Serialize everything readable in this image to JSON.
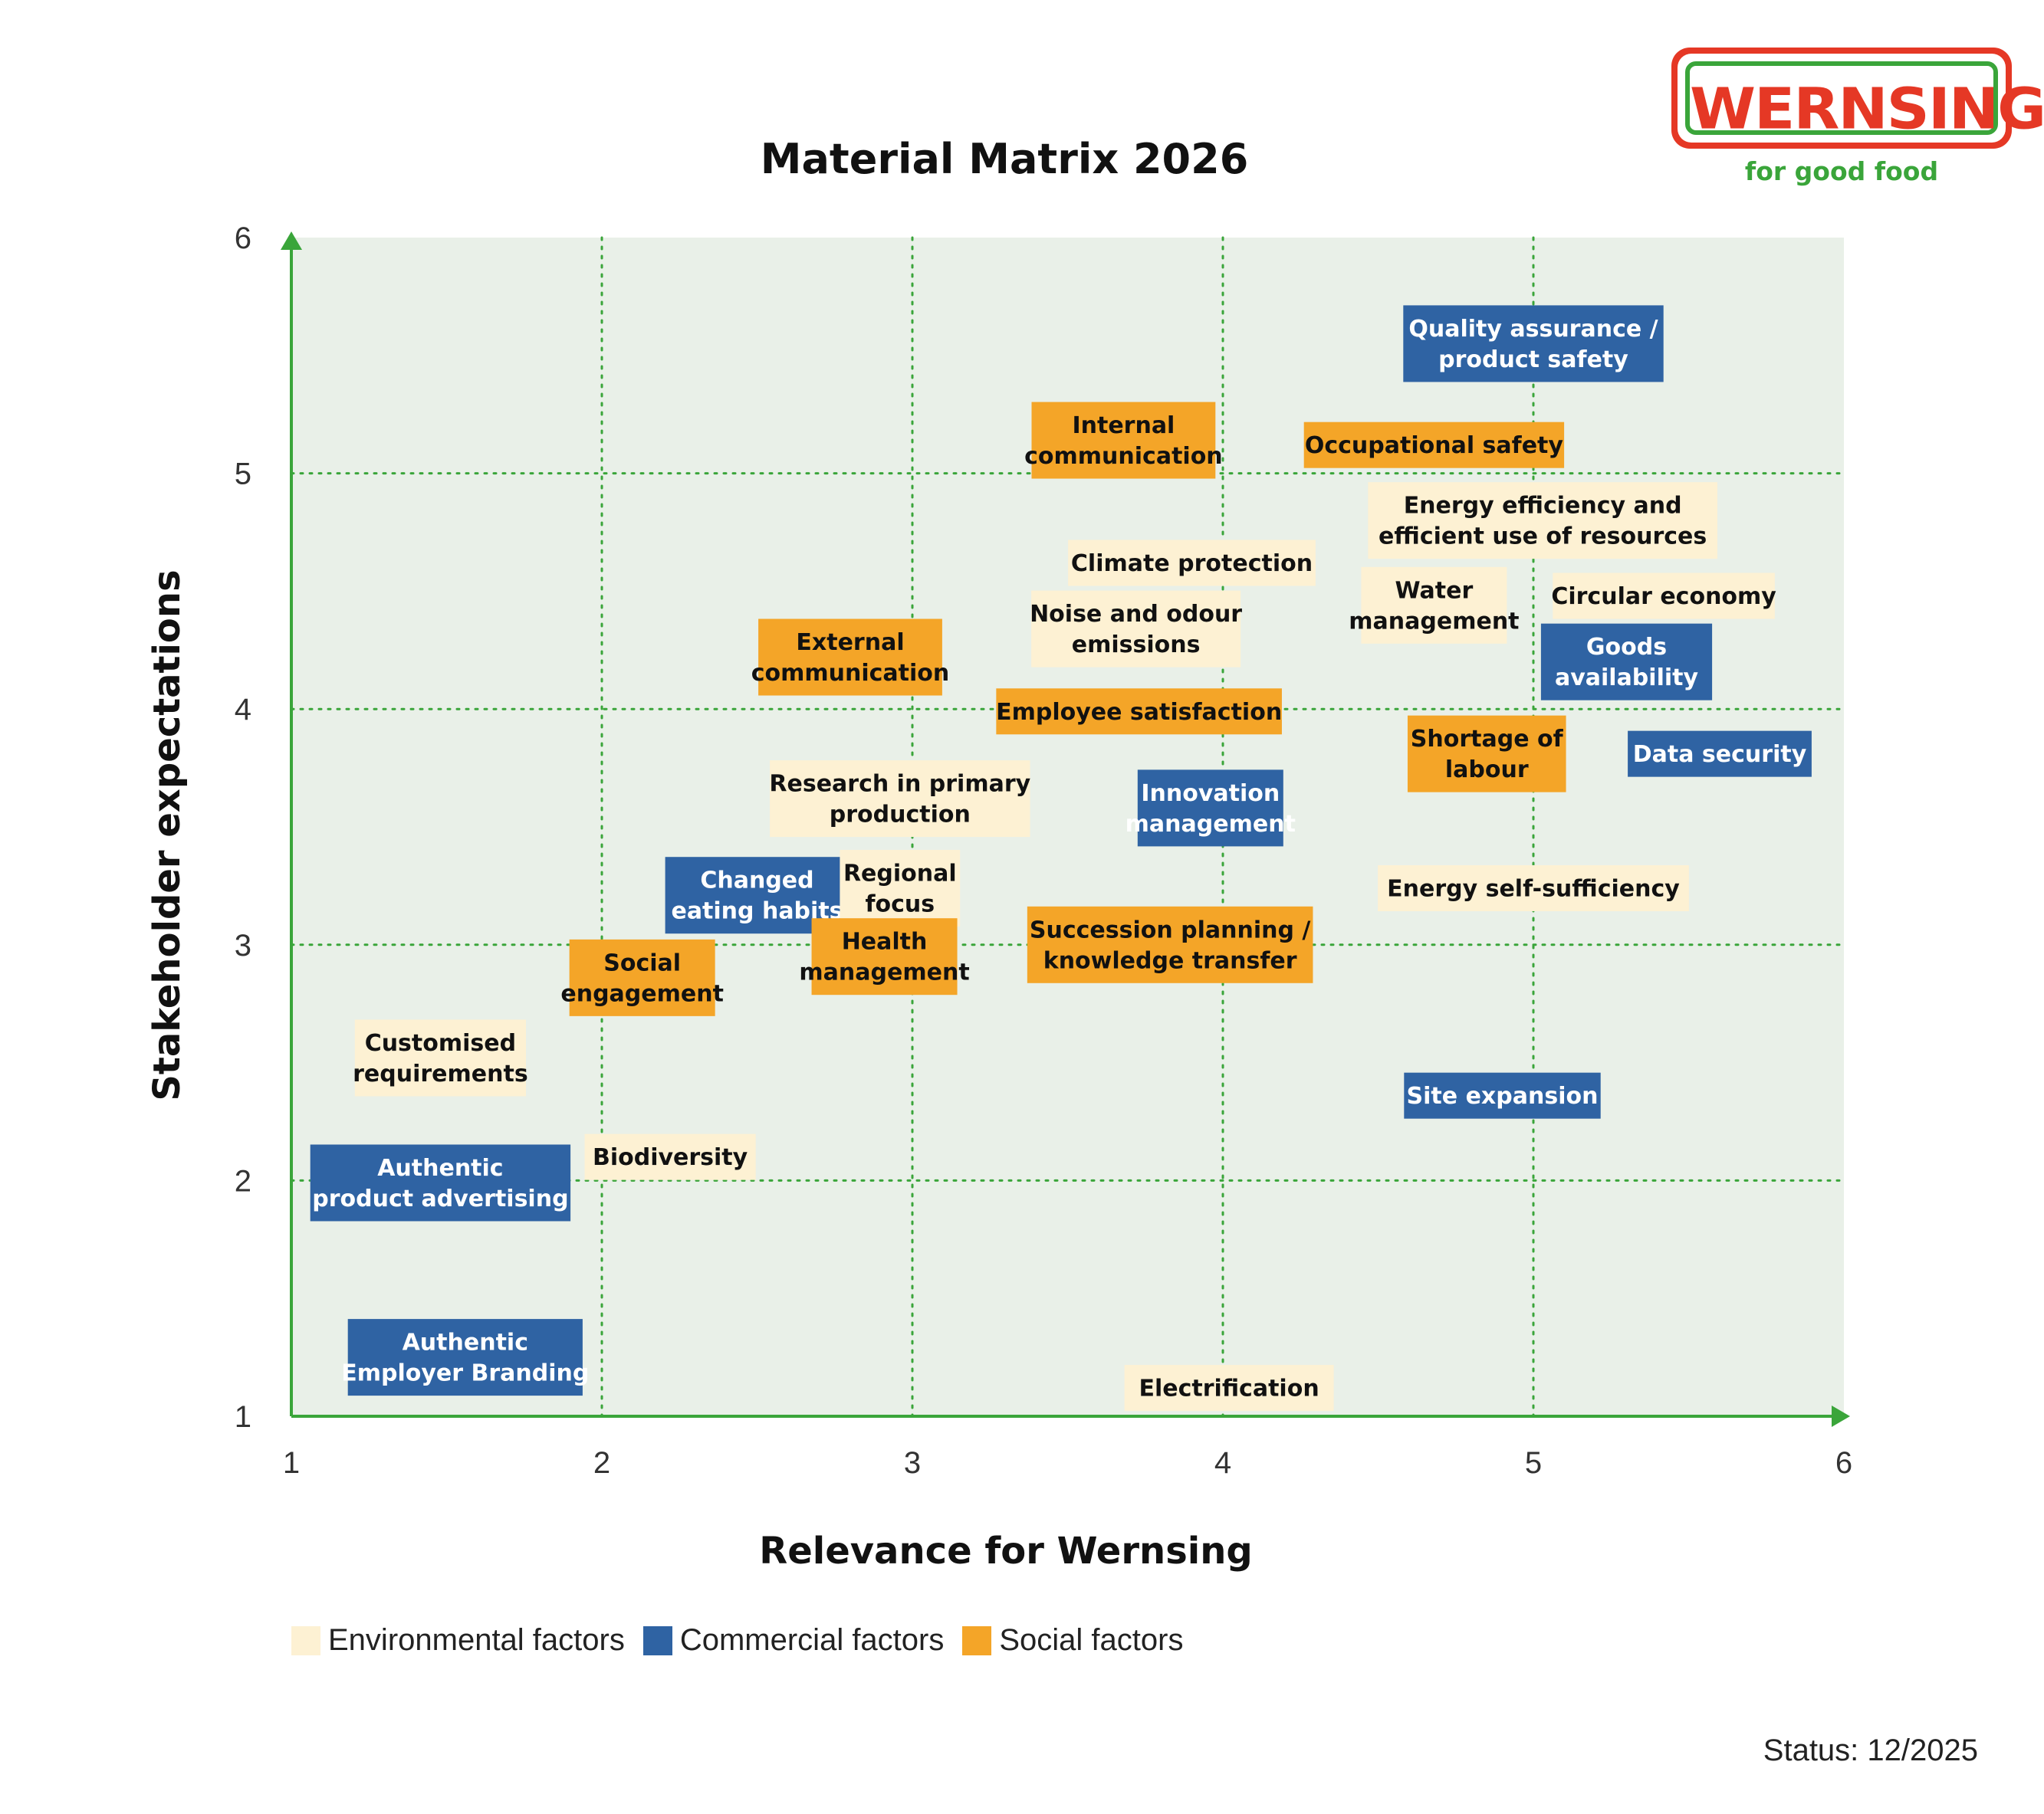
{
  "title": "Material Matrix 2026",
  "logo": {
    "text": "WERNSING",
    "slogan": "for good food"
  },
  "status": "Status: 12/2025",
  "colors": {
    "environmental": "#fdf1d3",
    "commercial": "#2f63a3",
    "social": "#f4a528",
    "grid": "#3aa53a",
    "axis": "#3aa53a",
    "plot_bg": "#e9f0e8"
  },
  "legend": [
    {
      "label": "Environmental factors",
      "category": "environmental"
    },
    {
      "label": "Commercial factors",
      "category": "commercial"
    },
    {
      "label": "Social factors",
      "category": "social"
    }
  ],
  "chart_data": {
    "type": "scatter",
    "title": "Material Matrix 2026",
    "xlabel": "Relevance for Wernsing",
    "ylabel": "Stakeholder expectations",
    "xlim": [
      1,
      6
    ],
    "ylim": [
      1,
      6
    ],
    "xticks": [
      "1",
      "2",
      "3",
      "4",
      "5",
      "6"
    ],
    "yticks": [
      "1",
      "2",
      "3",
      "4",
      "5",
      "6"
    ],
    "grid": true,
    "legend_position": "bottom-left",
    "points": [
      {
        "label": [
          "Quality assurance /",
          "product safety"
        ],
        "category": "commercial",
        "x": 5.0,
        "y": 5.55
      },
      {
        "label": [
          "Internal",
          "communication"
        ],
        "category": "social",
        "x": 3.68,
        "y": 5.14
      },
      {
        "label": [
          "Occupational safety"
        ],
        "category": "social",
        "x": 4.68,
        "y": 5.12
      },
      {
        "label": [
          "Energy efficiency and",
          "efficient use of resources"
        ],
        "category": "environmental",
        "x": 5.03,
        "y": 4.8
      },
      {
        "label": [
          "Climate protection"
        ],
        "category": "environmental",
        "x": 3.9,
        "y": 4.62
      },
      {
        "label": [
          "Water",
          "management"
        ],
        "category": "environmental",
        "x": 4.68,
        "y": 4.44
      },
      {
        "label": [
          "Circular economy"
        ],
        "category": "environmental",
        "x": 5.42,
        "y": 4.48
      },
      {
        "label": [
          "Noise and odour",
          "emissions"
        ],
        "category": "environmental",
        "x": 3.72,
        "y": 4.34
      },
      {
        "label": [
          "Goods",
          "availability"
        ],
        "category": "commercial",
        "x": 5.3,
        "y": 4.2
      },
      {
        "label": [
          "External",
          "communication"
        ],
        "category": "social",
        "x": 2.8,
        "y": 4.22
      },
      {
        "label": [
          "Employee satisfaction"
        ],
        "category": "social",
        "x": 3.73,
        "y": 3.99
      },
      {
        "label": [
          "Shortage of",
          "labour"
        ],
        "category": "social",
        "x": 4.85,
        "y": 3.81
      },
      {
        "label": [
          "Data security"
        ],
        "category": "commercial",
        "x": 5.6,
        "y": 3.81
      },
      {
        "label": [
          "Research in primary",
          "production"
        ],
        "category": "environmental",
        "x": 2.96,
        "y": 3.62
      },
      {
        "label": [
          "Innovation",
          "management"
        ],
        "category": "commercial",
        "x": 3.96,
        "y": 3.58
      },
      {
        "label": [
          "Changed",
          "eating habits"
        ],
        "category": "commercial",
        "x": 2.5,
        "y": 3.21
      },
      {
        "label": [
          "Regional",
          "focus"
        ],
        "category": "environmental",
        "x": 2.96,
        "y": 3.24
      },
      {
        "label": [
          "Energy self-sufficiency"
        ],
        "category": "environmental",
        "x": 5.0,
        "y": 3.24
      },
      {
        "label": [
          "Succession planning /",
          "knowledge transfer"
        ],
        "category": "social",
        "x": 3.83,
        "y": 3.0
      },
      {
        "label": [
          "Health",
          "management"
        ],
        "category": "social",
        "x": 2.91,
        "y": 2.95
      },
      {
        "label": [
          "Social",
          "engagement"
        ],
        "category": "social",
        "x": 2.13,
        "y": 2.86
      },
      {
        "label": [
          "Customised",
          "requirements"
        ],
        "category": "environmental",
        "x": 1.48,
        "y": 2.52
      },
      {
        "label": [
          "Site expansion"
        ],
        "category": "commercial",
        "x": 4.9,
        "y": 2.36
      },
      {
        "label": [
          "Biodiversity"
        ],
        "category": "environmental",
        "x": 2.22,
        "y": 2.1
      },
      {
        "label": [
          "Authentic",
          "product advertising"
        ],
        "category": "commercial",
        "x": 1.48,
        "y": 1.99
      },
      {
        "label": [
          "Authentic",
          "Employer Branding"
        ],
        "category": "commercial",
        "x": 1.56,
        "y": 1.25
      },
      {
        "label": [
          "Electrification"
        ],
        "category": "environmental",
        "x": 4.02,
        "y": 1.12
      }
    ]
  }
}
